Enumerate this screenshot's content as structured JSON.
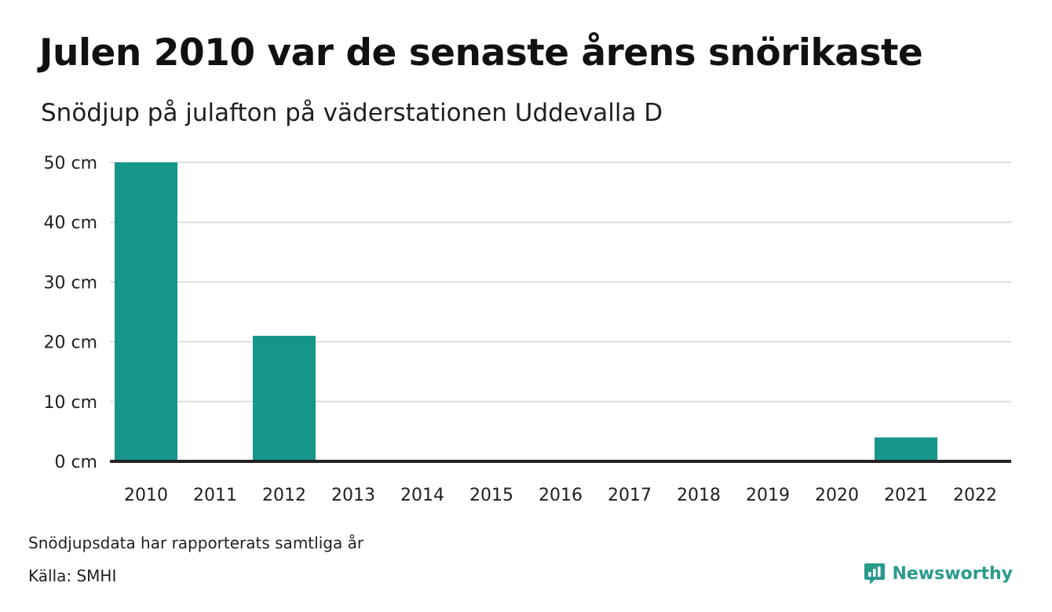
{
  "colors": {
    "bar": "#16968a",
    "grid": "#dddddd",
    "baseline": "#222222",
    "brand": "#2a9a8d"
  },
  "chart_data": {
    "type": "bar",
    "title": "Julen 2010 var de senaste årens snörikaste",
    "subtitle": "Snödjup på julafton på väderstationen Uddevalla D",
    "categories": [
      "2010",
      "2011",
      "2012",
      "2013",
      "2014",
      "2015",
      "2016",
      "2017",
      "2018",
      "2019",
      "2020",
      "2021",
      "2022"
    ],
    "values": [
      50,
      0,
      21,
      0,
      0,
      0,
      0,
      0,
      0,
      0,
      0,
      4,
      0
    ],
    "unit": "cm",
    "ylim": [
      0,
      50
    ],
    "yticks": [
      0,
      10,
      20,
      30,
      40,
      50
    ],
    "ytick_labels": [
      "0 cm",
      "10 cm",
      "20 cm",
      "30 cm",
      "40 cm",
      "50 cm"
    ],
    "grid": true,
    "legend": "none"
  },
  "footnote": "Snödjupsdata har rapporterats samtliga år",
  "source": "Källa: SMHI",
  "brand": {
    "name": "Newsworthy",
    "icon": "newsworthy-logo-icon"
  }
}
